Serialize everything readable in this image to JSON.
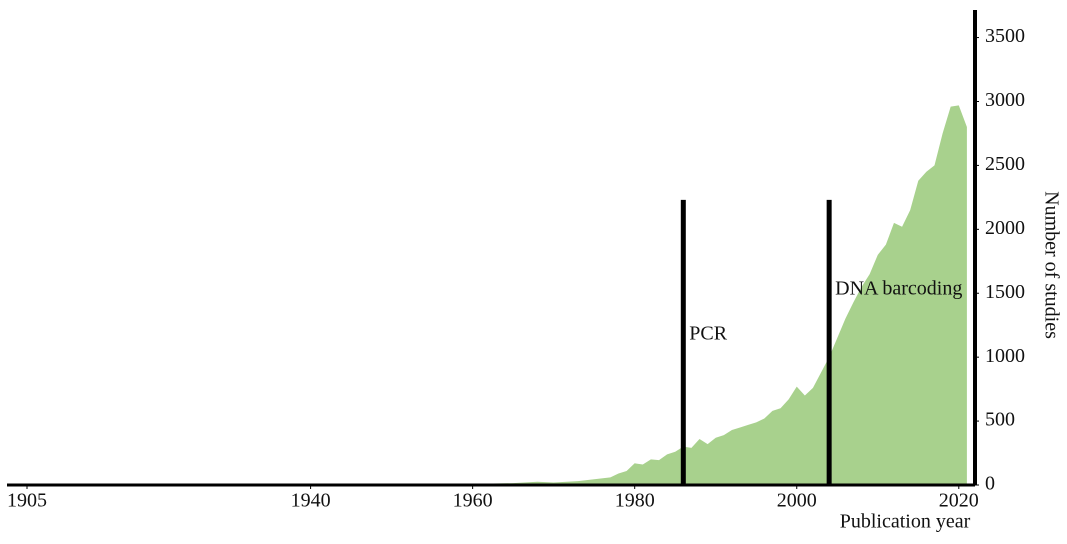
{
  "chart_data": {
    "type": "area",
    "xlabel": "Publication year",
    "ylabel": "Number of studies",
    "color": "#a8d18d",
    "x": [
      1905,
      1950,
      1960,
      1965,
      1968,
      1970,
      1973,
      1975,
      1977,
      1978,
      1979,
      1980,
      1981,
      1982,
      1983,
      1984,
      1985,
      1986,
      1987,
      1988,
      1989,
      1990,
      1991,
      1992,
      1993,
      1994,
      1995,
      1996,
      1997,
      1998,
      1999,
      2000,
      2001,
      2002,
      2003,
      2004,
      2005,
      2006,
      2007,
      2008,
      2009,
      2010,
      2011,
      2012,
      2013,
      2014,
      2015,
      2016,
      2017,
      2018,
      2019,
      2020,
      2021
    ],
    "values": [
      0,
      3,
      8,
      15,
      25,
      20,
      30,
      45,
      60,
      90,
      110,
      170,
      160,
      200,
      195,
      240,
      260,
      300,
      290,
      360,
      320,
      370,
      390,
      430,
      450,
      470,
      490,
      520,
      580,
      600,
      670,
      770,
      700,
      760,
      880,
      1000,
      1150,
      1300,
      1430,
      1550,
      1650,
      1800,
      1880,
      2050,
      2020,
      2150,
      2380,
      2450,
      2500,
      2750,
      2960,
      2970,
      2800
    ],
    "xlim": [
      1905,
      2022
    ],
    "xticks": [
      1905,
      1940,
      1960,
      1980,
      2000,
      2020
    ],
    "ylim": [
      0,
      3700
    ],
    "yticks": [
      0,
      500,
      1000,
      1500,
      2000,
      2500,
      3000,
      3500
    ],
    "events": [
      {
        "label": "PCR",
        "x": 1986,
        "y": 2230
      },
      {
        "label": "DNA barcoding",
        "x": 2004,
        "y": 2230
      }
    ]
  }
}
